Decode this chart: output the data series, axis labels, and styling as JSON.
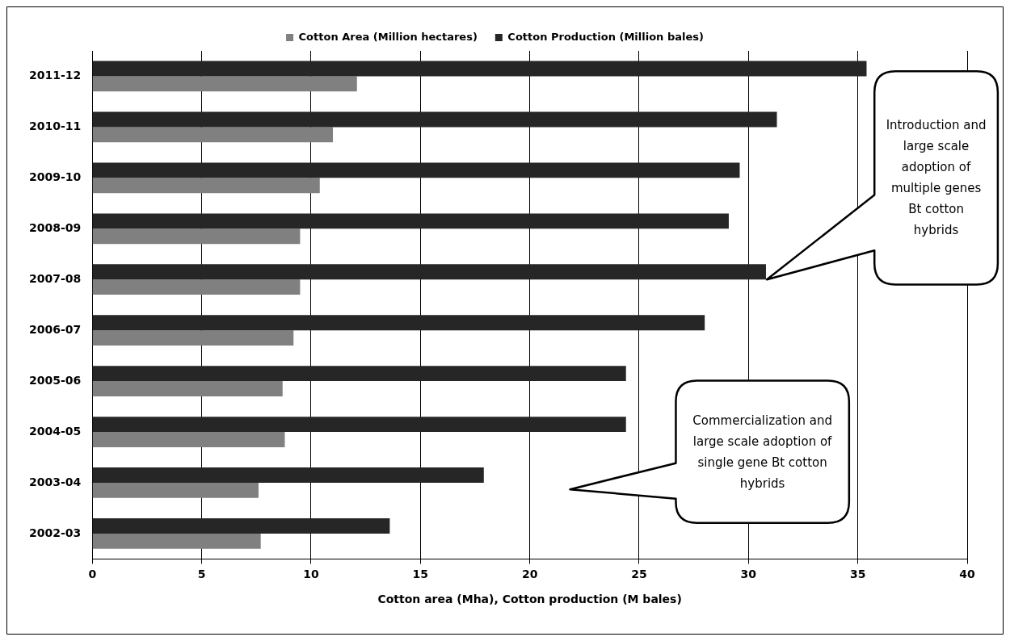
{
  "chart_data": {
    "type": "bar",
    "orientation": "horizontal",
    "xlabel": "Cotton area (Mha), Cotton production (M bales)",
    "categories": [
      "2011-12",
      "2010-11",
      "2009-10",
      "2008-09",
      "2007-08",
      "2006-07",
      "2005-06",
      "2004-05",
      "2003-04",
      "2002-03"
    ],
    "series": [
      {
        "name": "Cotton Area (Million hectares)",
        "color": "#808080",
        "values": [
          12.1,
          11.0,
          10.4,
          9.5,
          9.5,
          9.2,
          8.7,
          8.8,
          7.6,
          7.7
        ]
      },
      {
        "name": "Cotton Production (Million bales)",
        "color": "#262626",
        "values": [
          35.4,
          31.3,
          29.6,
          29.1,
          30.8,
          28.0,
          24.4,
          24.4,
          17.9,
          13.6
        ]
      }
    ],
    "xlim": [
      0,
      40
    ],
    "xticks": [
      0,
      5,
      10,
      15,
      20,
      25,
      30,
      35,
      40
    ],
    "grid": "x",
    "legend": "top",
    "annotations": [
      "Introduction and large scale adoption of multiple genes Bt cotton hybrids",
      "Commercialization and large scale adoption of single gene Bt cotton hybrids"
    ]
  }
}
